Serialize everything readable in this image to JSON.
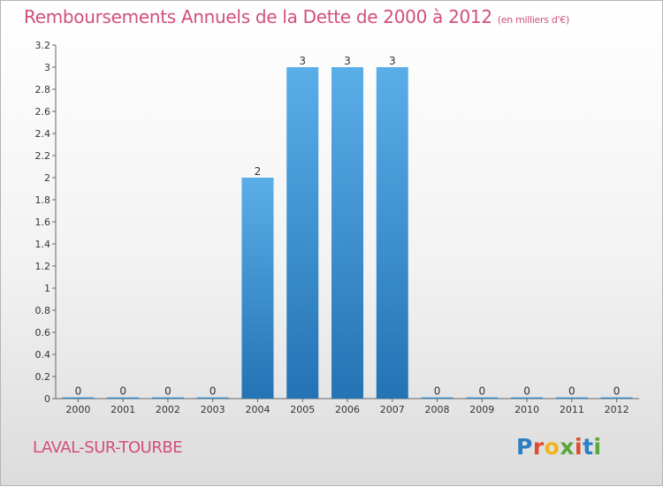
{
  "header": {
    "title": "Remboursements Annuels de la Dette de 2000 à 2012",
    "unit": "(en milliers d'€)"
  },
  "footer": {
    "commune": "LAVAL-SUR-TOURBE",
    "logo_letters": [
      "P",
      "r",
      "o",
      "x",
      "i",
      "t",
      "i"
    ],
    "logo_colors": [
      "#2c7fc4",
      "#e04a2f",
      "#f2b21c",
      "#5aa53a",
      "#e04a2f",
      "#2c7fc4",
      "#5aa53a"
    ]
  },
  "chart_data": {
    "type": "bar",
    "title": "Remboursements Annuels de la Dette de 2000 à 2012",
    "xlabel": "",
    "ylabel": "",
    "categories": [
      "2000",
      "2001",
      "2002",
      "2003",
      "2004",
      "2005",
      "2006",
      "2007",
      "2008",
      "2009",
      "2010",
      "2011",
      "2012"
    ],
    "values": [
      0,
      0,
      0,
      0,
      2,
      3,
      3,
      3,
      0,
      0,
      0,
      0,
      0
    ],
    "data_labels": [
      "0",
      "0",
      "0",
      "0",
      "2",
      "3",
      "3",
      "3",
      "0",
      "0",
      "0",
      "0",
      "0"
    ],
    "ylim": [
      0,
      3.2
    ],
    "yticks": [
      0,
      0.2,
      0.4,
      0.6,
      0.8,
      1,
      1.2,
      1.4,
      1.6,
      1.8,
      2,
      2.2,
      2.4,
      2.6,
      2.8,
      3,
      3.2
    ],
    "ytick_labels": [
      "0",
      "0.2",
      "0.4",
      "0.6",
      "0.8",
      "1",
      "1.2",
      "1.4",
      "1.6",
      "1.8",
      "2",
      "2.2",
      "2.4",
      "2.6",
      "2.8",
      "3",
      "3.2"
    ],
    "grid": false,
    "bar_color": "#3b8fd6"
  }
}
